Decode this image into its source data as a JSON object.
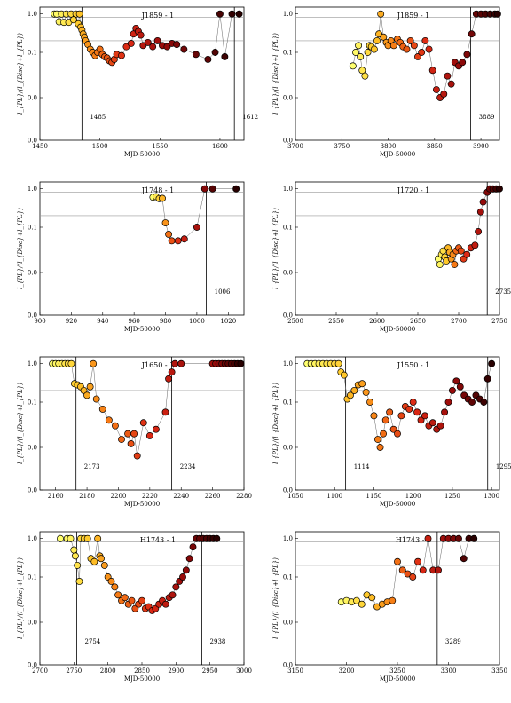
{
  "chart_data": [
    {
      "type": "scatter",
      "title": "J1859 - 1",
      "xlabel": "MJD-50000",
      "ylabel": "l_{PL}/(l_{Disc}+l_{PL})",
      "xlim": [
        1450,
        1620
      ],
      "xticks": [
        1450,
        1500,
        1550,
        1600
      ],
      "ylim_labels": [
        "0.0",
        "0.0",
        "0.1",
        "1.0"
      ],
      "yticks": [
        "0.0",
        "0.0",
        "0.1",
        "1.0"
      ],
      "hlines": [
        0.8,
        0.2
      ],
      "vlines": [
        {
          "x": 1485,
          "label": "1485"
        },
        {
          "x": 1612,
          "label": "1612"
        }
      ],
      "x": [
        1462,
        1464,
        1466,
        1468,
        1470,
        1472,
        1474,
        1476,
        1478,
        1480,
        1482,
        1483,
        1484,
        1485,
        1486,
        1487,
        1488,
        1490,
        1492,
        1494,
        1496,
        1498,
        1500,
        1502,
        1504,
        1506,
        1508,
        1510,
        1512,
        1514,
        1518,
        1522,
        1526,
        1528,
        1530,
        1532,
        1534,
        1536,
        1540,
        1544,
        1548,
        1552,
        1556,
        1560,
        1564,
        1570,
        1580,
        1590,
        1596,
        1600,
        1604,
        1610,
        1616
      ],
      "y": [
        0.99,
        0.99,
        0.62,
        0.99,
        0.6,
        0.99,
        0.6,
        0.99,
        0.7,
        0.99,
        0.55,
        0.99,
        0.45,
        0.38,
        0.3,
        0.25,
        0.2,
        0.16,
        0.12,
        0.1,
        0.085,
        0.1,
        0.12,
        0.09,
        0.08,
        0.075,
        0.065,
        0.06,
        0.07,
        0.09,
        0.085,
        0.14,
        0.17,
        0.3,
        0.42,
        0.35,
        0.28,
        0.15,
        0.18,
        0.14,
        0.2,
        0.15,
        0.14,
        0.17,
        0.16,
        0.12,
        0.09,
        0.07,
        0.1,
        0.99,
        0.08,
        0.99,
        0.99
      ],
      "color_scale": "yellow-to-black"
    },
    {
      "type": "scatter",
      "title": "J1859 - 1",
      "xlabel": "MJD-50000",
      "ylabel": "l_{PL}/(l_{Disc}+l_{PL})",
      "xlim": [
        3700,
        3920
      ],
      "xticks": [
        3700,
        3750,
        3800,
        3850,
        3900
      ],
      "yticks": [
        "0.0",
        "0.0",
        "0.1",
        "1.0"
      ],
      "hlines": [
        0.8,
        0.2
      ],
      "vlines": [
        {
          "x": 3889,
          "label": "3889"
        }
      ],
      "x": [
        3762,
        3765,
        3768,
        3770,
        3772,
        3775,
        3778,
        3780,
        3782,
        3785,
        3788,
        3790,
        3792,
        3795,
        3798,
        3800,
        3803,
        3806,
        3810,
        3813,
        3816,
        3820,
        3824,
        3828,
        3832,
        3836,
        3840,
        3844,
        3848,
        3852,
        3856,
        3860,
        3864,
        3868,
        3872,
        3876,
        3880,
        3885,
        3890,
        3895,
        3900,
        3905,
        3910,
        3915,
        3918
      ],
      "y": [
        0.05,
        0.1,
        0.15,
        0.08,
        0.04,
        0.03,
        0.1,
        0.15,
        0.14,
        0.12,
        0.2,
        0.3,
        0.99,
        0.25,
        0.18,
        0.15,
        0.2,
        0.15,
        0.22,
        0.18,
        0.14,
        0.12,
        0.2,
        0.15,
        0.08,
        0.1,
        0.2,
        0.12,
        0.04,
        0.015,
        0.01,
        0.012,
        0.03,
        0.02,
        0.06,
        0.05,
        0.06,
        0.09,
        0.3,
        0.99,
        0.99,
        0.99,
        0.99,
        0.99,
        0.99
      ],
      "color_scale": "yellow-to-black"
    },
    {
      "type": "scatter",
      "title": "J1748 - 1",
      "xlabel": "MJD-50000",
      "ylabel": "l_{PL}/(l_{Disc}+l_{PL})",
      "xlim": [
        900,
        1030
      ],
      "xticks": [
        900,
        920,
        940,
        960,
        980,
        1000,
        1020
      ],
      "yticks": [
        "0.0",
        "0.0",
        "0.1",
        "1.0"
      ],
      "hlines": [
        0.8,
        0.2
      ],
      "vlines": [
        {
          "x": 1006,
          "label": "1006"
        }
      ],
      "x": [
        972,
        974,
        976,
        978,
        980,
        982,
        984,
        988,
        992,
        1000,
        1005,
        1010,
        1025
      ],
      "y": [
        0.6,
        0.62,
        0.55,
        0.56,
        0.13,
        0.07,
        0.05,
        0.05,
        0.055,
        0.1,
        0.99,
        0.99,
        0.99
      ],
      "color_scale": "yellow-to-black"
    },
    {
      "type": "scatter",
      "title": "J1720 - 1",
      "xlabel": "MJD-50000",
      "ylabel": "l_{PL}/(l_{Disc}+l_{PL})",
      "xlim": [
        2500,
        2750
      ],
      "xticks": [
        2500,
        2550,
        2600,
        2650,
        2700,
        2750
      ],
      "yticks": [
        "0.0",
        "0.0",
        "0.1",
        "1.0"
      ],
      "hlines": [
        0.8,
        0.2
      ],
      "vlines": [
        {
          "x": 2735,
          "label": "2735"
        }
      ],
      "x": [
        2675,
        2677,
        2679,
        2681,
        2683,
        2685,
        2687,
        2689,
        2691,
        2693,
        2695,
        2697,
        2700,
        2703,
        2706,
        2710,
        2715,
        2720,
        2724,
        2727,
        2730,
        2735,
        2738,
        2742,
        2746,
        2750
      ],
      "y": [
        0.02,
        0.015,
        0.025,
        0.03,
        0.022,
        0.018,
        0.035,
        0.028,
        0.02,
        0.025,
        0.015,
        0.03,
        0.035,
        0.03,
        0.02,
        0.025,
        0.035,
        0.04,
        0.08,
        0.25,
        0.45,
        0.8,
        0.99,
        0.99,
        0.99,
        0.99
      ],
      "color_scale": "yellow-to-black"
    },
    {
      "type": "scatter",
      "title": "J1650 - 1",
      "xlabel": "MJD-50000",
      "ylabel": "l_{PL}/(l_{Disc}+l_{PL})",
      "xlim": [
        2150,
        2280
      ],
      "xticks": [
        2160,
        2180,
        2200,
        2220,
        2240,
        2260,
        2280
      ],
      "yticks": [
        "0.0",
        "0.0",
        "0.1",
        "1.0"
      ],
      "hlines": [
        0.8,
        0.2
      ],
      "vlines": [
        {
          "x": 2173,
          "label": "2173"
        },
        {
          "x": 2234,
          "label": "2234"
        }
      ],
      "x": [
        2158,
        2160,
        2162,
        2164,
        2166,
        2168,
        2170,
        2172,
        2174,
        2176,
        2178,
        2180,
        2182,
        2184,
        2186,
        2190,
        2194,
        2198,
        2202,
        2206,
        2208,
        2210,
        2212,
        2216,
        2220,
        2224,
        2230,
        2232,
        2234,
        2236,
        2240,
        2260,
        2262,
        2264,
        2266,
        2268,
        2270,
        2272,
        2274,
        2276,
        2278
      ],
      "y": [
        0.99,
        0.99,
        0.99,
        0.99,
        0.99,
        0.99,
        0.99,
        0.3,
        0.28,
        0.25,
        0.2,
        0.15,
        0.25,
        0.99,
        0.12,
        0.07,
        0.04,
        0.03,
        0.015,
        0.02,
        0.012,
        0.02,
        0.008,
        0.035,
        0.018,
        0.025,
        0.06,
        0.4,
        0.6,
        0.99,
        0.99,
        0.99,
        0.99,
        0.99,
        0.99,
        0.99,
        0.99,
        0.99,
        0.99,
        0.99,
        0.99
      ],
      "color_scale": "yellow-to-black"
    },
    {
      "type": "scatter",
      "title": "J1550 - 1",
      "xlabel": "MJD-50000",
      "ylabel": "l_{PL}/(l_{Disc}+l_{PL})",
      "xlim": [
        1050,
        1310
      ],
      "xticks": [
        1050,
        1100,
        1150,
        1200,
        1250,
        1300
      ],
      "yticks": [
        "0.0",
        "0.0",
        "0.1",
        "1.0"
      ],
      "hlines": [
        0.8,
        0.2
      ],
      "vlines": [
        {
          "x": 1114,
          "label": "1114"
        },
        {
          "x": 1295,
          "label": "1295"
        }
      ],
      "x": [
        1065,
        1070,
        1075,
        1080,
        1085,
        1090,
        1095,
        1100,
        1105,
        1108,
        1112,
        1116,
        1120,
        1125,
        1130,
        1135,
        1140,
        1145,
        1150,
        1155,
        1158,
        1162,
        1165,
        1170,
        1175,
        1180,
        1185,
        1190,
        1195,
        1200,
        1205,
        1210,
        1215,
        1220,
        1225,
        1230,
        1235,
        1240,
        1245,
        1250,
        1255,
        1260,
        1265,
        1270,
        1275,
        1280,
        1285,
        1290,
        1295,
        1300
      ],
      "y": [
        0.99,
        0.99,
        0.99,
        0.99,
        0.99,
        0.99,
        0.99,
        0.99,
        0.99,
        0.6,
        0.5,
        0.12,
        0.15,
        0.2,
        0.28,
        0.3,
        0.18,
        0.1,
        0.05,
        0.015,
        0.01,
        0.02,
        0.04,
        0.06,
        0.025,
        0.02,
        0.05,
        0.08,
        0.07,
        0.1,
        0.06,
        0.04,
        0.05,
        0.03,
        0.035,
        0.025,
        0.03,
        0.06,
        0.1,
        0.2,
        0.35,
        0.25,
        0.15,
        0.12,
        0.1,
        0.15,
        0.12,
        0.1,
        0.4,
        0.99
      ],
      "color_scale": "yellow-to-black"
    },
    {
      "type": "scatter",
      "title": "H1743 - 1",
      "xlabel": "MJD-50000",
      "ylabel": "l_{PL}/(l_{Disc}+l_{PL})",
      "xlim": [
        2700,
        3000
      ],
      "xticks": [
        2700,
        2750,
        2800,
        2850,
        2900,
        2950,
        3000
      ],
      "yticks": [
        "0.0",
        "0.0",
        "0.1",
        "1.0"
      ],
      "hlines": [
        0.8,
        0.2
      ],
      "vlines": [
        {
          "x": 2754,
          "label": "2754"
        },
        {
          "x": 2938,
          "label": "2938"
        }
      ],
      "x": [
        2730,
        2740,
        2745,
        2750,
        2752,
        2755,
        2758,
        2760,
        2765,
        2770,
        2775,
        2780,
        2785,
        2788,
        2790,
        2795,
        2800,
        2805,
        2810,
        2815,
        2820,
        2825,
        2830,
        2835,
        2840,
        2845,
        2850,
        2855,
        2860,
        2865,
        2870,
        2875,
        2880,
        2885,
        2890,
        2895,
        2900,
        2905,
        2910,
        2915,
        2920,
        2925,
        2930,
        2935,
        2940,
        2945,
        2950,
        2955,
        2960
      ],
      "y": [
        0.99,
        0.99,
        0.99,
        0.5,
        0.35,
        0.2,
        0.08,
        0.99,
        0.99,
        0.99,
        0.3,
        0.25,
        0.99,
        0.35,
        0.3,
        0.2,
        0.1,
        0.08,
        0.06,
        0.04,
        0.03,
        0.035,
        0.025,
        0.03,
        0.02,
        0.025,
        0.03,
        0.02,
        0.022,
        0.018,
        0.02,
        0.025,
        0.03,
        0.025,
        0.035,
        0.04,
        0.06,
        0.08,
        0.1,
        0.15,
        0.3,
        0.6,
        0.99,
        0.99,
        0.99,
        0.99,
        0.99,
        0.99,
        0.99
      ],
      "color_scale": "yellow-to-black"
    },
    {
      "type": "scatter",
      "title": "H1743 - 2",
      "xlabel": "MJD-50000",
      "ylabel": "l_{PL}/(l_{Disc}+l_{PL})",
      "xlim": [
        3150,
        3350
      ],
      "xticks": [
        3150,
        3200,
        3250,
        3300,
        3350
      ],
      "yticks": [
        "0.0",
        "0.0",
        "0.1",
        "1.0"
      ],
      "hlines": [
        0.8,
        0.2
      ],
      "vlines": [
        {
          "x": 3289,
          "label": "3289"
        }
      ],
      "x": [
        3195,
        3200,
        3205,
        3210,
        3215,
        3220,
        3225,
        3230,
        3235,
        3240,
        3245,
        3250,
        3255,
        3260,
        3265,
        3270,
        3275,
        3280,
        3285,
        3290,
        3295,
        3300,
        3305,
        3310,
        3315,
        3320,
        3325
      ],
      "y": [
        0.028,
        0.03,
        0.028,
        0.03,
        0.025,
        0.04,
        0.035,
        0.022,
        0.025,
        0.028,
        0.03,
        0.25,
        0.15,
        0.12,
        0.1,
        0.25,
        0.15,
        0.99,
        0.15,
        0.15,
        0.99,
        0.99,
        0.99,
        0.99,
        0.3,
        0.99,
        0.99
      ],
      "color_scale": "yellow-to-black"
    }
  ]
}
